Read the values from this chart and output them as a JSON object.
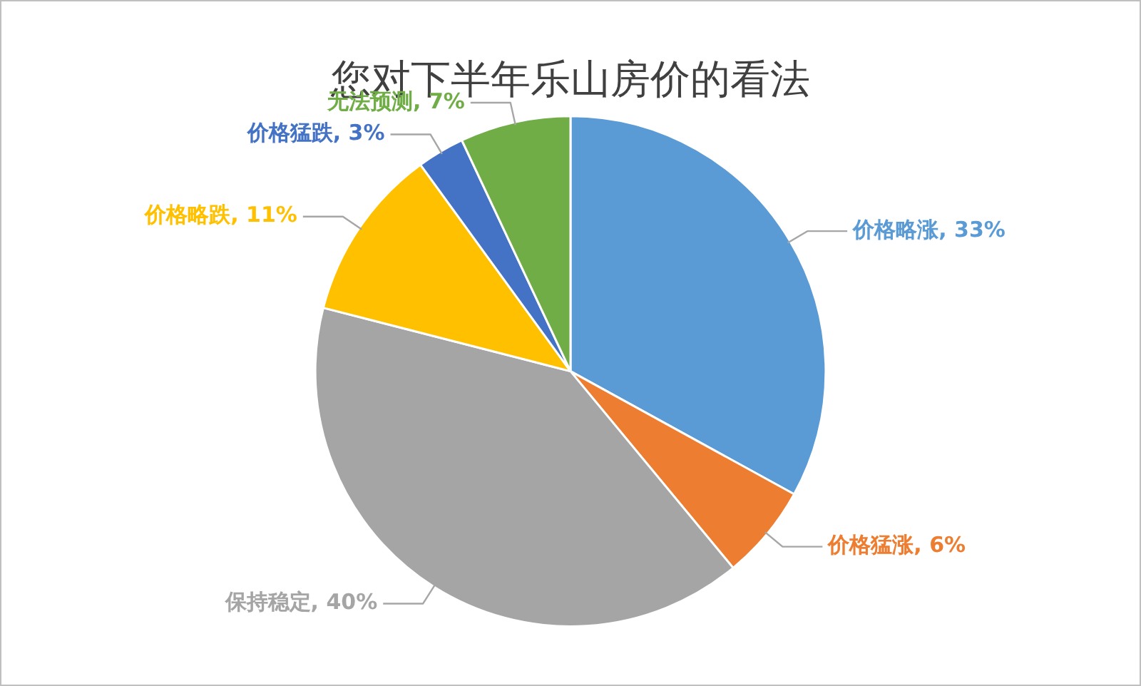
{
  "chart_data": {
    "type": "pie",
    "title": "您对下半年乐山房价的看法",
    "categories": [
      "价格略涨",
      "价格猛涨",
      "保持稳定",
      "价格略跌",
      "价格猛跌",
      "无法预测"
    ],
    "values": [
      33,
      6,
      40,
      11,
      3,
      7
    ],
    "value_labels": [
      "33%",
      "6%",
      "40%",
      "11%",
      "3%",
      "7%"
    ],
    "colors": [
      "#5b9bd5",
      "#ed7d31",
      "#a5a5a5",
      "#ffc000",
      "#4472c4",
      "#70ad47"
    ],
    "legend": false
  }
}
